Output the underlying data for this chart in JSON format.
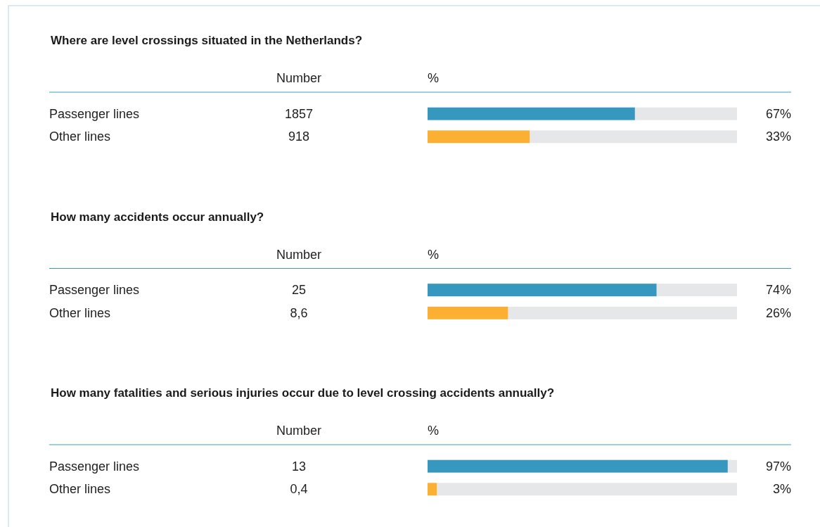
{
  "chart_data": [
    {
      "type": "bar",
      "orientation": "horizontal",
      "title": "Where are level crossings situated in the Netherlands?",
      "xlabel": "%",
      "categories": [
        "Passenger lines",
        "Other lines"
      ],
      "values": [
        67,
        33
      ],
      "colors": [
        "#3698bf",
        "#fbb034"
      ],
      "value_labels": [
        "67%",
        "33%"
      ],
      "xlim": [
        0,
        100
      ],
      "annotations": [
        "Number",
        "1857",
        "918"
      ]
    },
    {
      "type": "bar",
      "orientation": "horizontal",
      "title": "How many accidents occur annually?",
      "xlabel": "%",
      "categories": [
        "Passenger lines",
        "Other lines"
      ],
      "values": [
        74,
        26
      ],
      "colors": [
        "#3698bf",
        "#fbb034"
      ],
      "value_labels": [
        "74%",
        "26%"
      ],
      "xlim": [
        0,
        100
      ],
      "annotations": [
        "Number",
        "25",
        "8,6"
      ]
    },
    {
      "type": "bar",
      "orientation": "horizontal",
      "title": "How many fatalities and serious injuries occur due to level crossing accidents annually?",
      "xlabel": "%",
      "categories": [
        "Passenger lines",
        "Other lines"
      ],
      "values": [
        97,
        3
      ],
      "colors": [
        "#3698bf",
        "#fbb034"
      ],
      "value_labels": [
        "97%",
        "3%"
      ],
      "xlim": [
        0,
        100
      ],
      "annotations": [
        "Number",
        "13",
        "0,4"
      ]
    }
  ]
}
